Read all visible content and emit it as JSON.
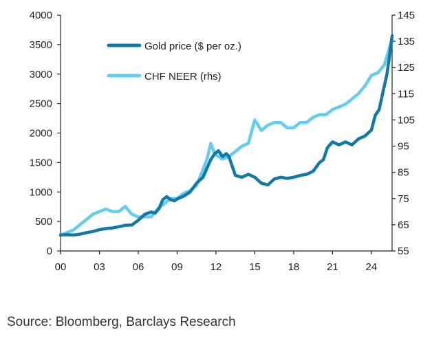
{
  "chart_data": {
    "type": "line",
    "title": "",
    "source": "Source: Bloomberg, Barclays Research",
    "x_ticks": [
      "00",
      "03",
      "06",
      "09",
      "12",
      "15",
      "18",
      "21",
      "24"
    ],
    "x_range": [
      0,
      25.6
    ],
    "y_left": {
      "range": [
        0,
        4000
      ],
      "ticks": [
        "0",
        "500",
        "1000",
        "1500",
        "2000",
        "2500",
        "3000",
        "3500",
        "4000"
      ]
    },
    "y_right": {
      "range": [
        55,
        145
      ],
      "ticks": [
        "55",
        "65",
        "75",
        "85",
        "95",
        "105",
        "115",
        "125",
        "135",
        "145"
      ]
    },
    "legend": [
      {
        "label": "Gold price ($ per oz.)",
        "color": "#1178a8"
      },
      {
        "label": "CHF NEER (rhs)",
        "color": "#63cdf0"
      }
    ],
    "series": [
      {
        "name": "Gold price ($ per oz.)",
        "axis": "left",
        "color": "#1178a8",
        "x": [
          0,
          0.5,
          1,
          1.5,
          2,
          2.5,
          3,
          3.5,
          4,
          4.5,
          5,
          5.5,
          6,
          6.5,
          7,
          7.3,
          7.6,
          7.9,
          8.2,
          8.5,
          8.8,
          9,
          9.5,
          10,
          10.5,
          11,
          11.3,
          11.6,
          11.9,
          12.2,
          12.5,
          12.8,
          13,
          13.5,
          14,
          14.5,
          15,
          15.5,
          16,
          16.5,
          17,
          17.5,
          18,
          18.5,
          19,
          19.5,
          20,
          20.3,
          20.6,
          21,
          21.5,
          22,
          22.5,
          23,
          23.5,
          24,
          24.3,
          24.6,
          24.9,
          25.2,
          25.4,
          25.6
        ],
        "values": [
          270,
          275,
          270,
          285,
          310,
          330,
          360,
          380,
          390,
          410,
          435,
          440,
          520,
          620,
          660,
          640,
          720,
          870,
          920,
          870,
          850,
          880,
          930,
          1000,
          1150,
          1250,
          1400,
          1550,
          1650,
          1700,
          1600,
          1650,
          1600,
          1280,
          1250,
          1300,
          1250,
          1150,
          1120,
          1220,
          1250,
          1230,
          1250,
          1280,
          1300,
          1350,
          1500,
          1550,
          1750,
          1850,
          1800,
          1850,
          1800,
          1900,
          1950,
          2050,
          2300,
          2400,
          2700,
          3000,
          3300,
          3650
        ]
      },
      {
        "name": "CHF NEER (rhs)",
        "axis": "right",
        "color": "#63cdf0",
        "x": [
          0,
          0.5,
          1,
          1.5,
          2,
          2.5,
          3,
          3.5,
          4,
          4.5,
          5,
          5.5,
          6,
          6.5,
          7,
          7.5,
          8,
          8.5,
          9,
          9.5,
          10,
          10.5,
          11,
          11.3,
          11.6,
          11.9,
          12.2,
          12.5,
          13,
          13.5,
          14,
          14.5,
          15,
          15.5,
          16,
          16.5,
          17,
          17.5,
          18,
          18.5,
          19,
          19.5,
          20,
          20.5,
          21,
          21.5,
          22,
          22.5,
          23,
          23.5,
          24,
          24.5,
          25,
          25.3,
          25.6
        ],
        "values": [
          61,
          62,
          63,
          65,
          67,
          69,
          70,
          71,
          70,
          70,
          72,
          69,
          68,
          68,
          68,
          71,
          73,
          75,
          75,
          77,
          78,
          80,
          86,
          90,
          96,
          92,
          91,
          90,
          91,
          93,
          95,
          96,
          105,
          101,
          103,
          104,
          104,
          102,
          102,
          104,
          104,
          106,
          107,
          107,
          109,
          110,
          111,
          113,
          115,
          118,
          122,
          123,
          126,
          131,
          136
        ]
      }
    ]
  }
}
